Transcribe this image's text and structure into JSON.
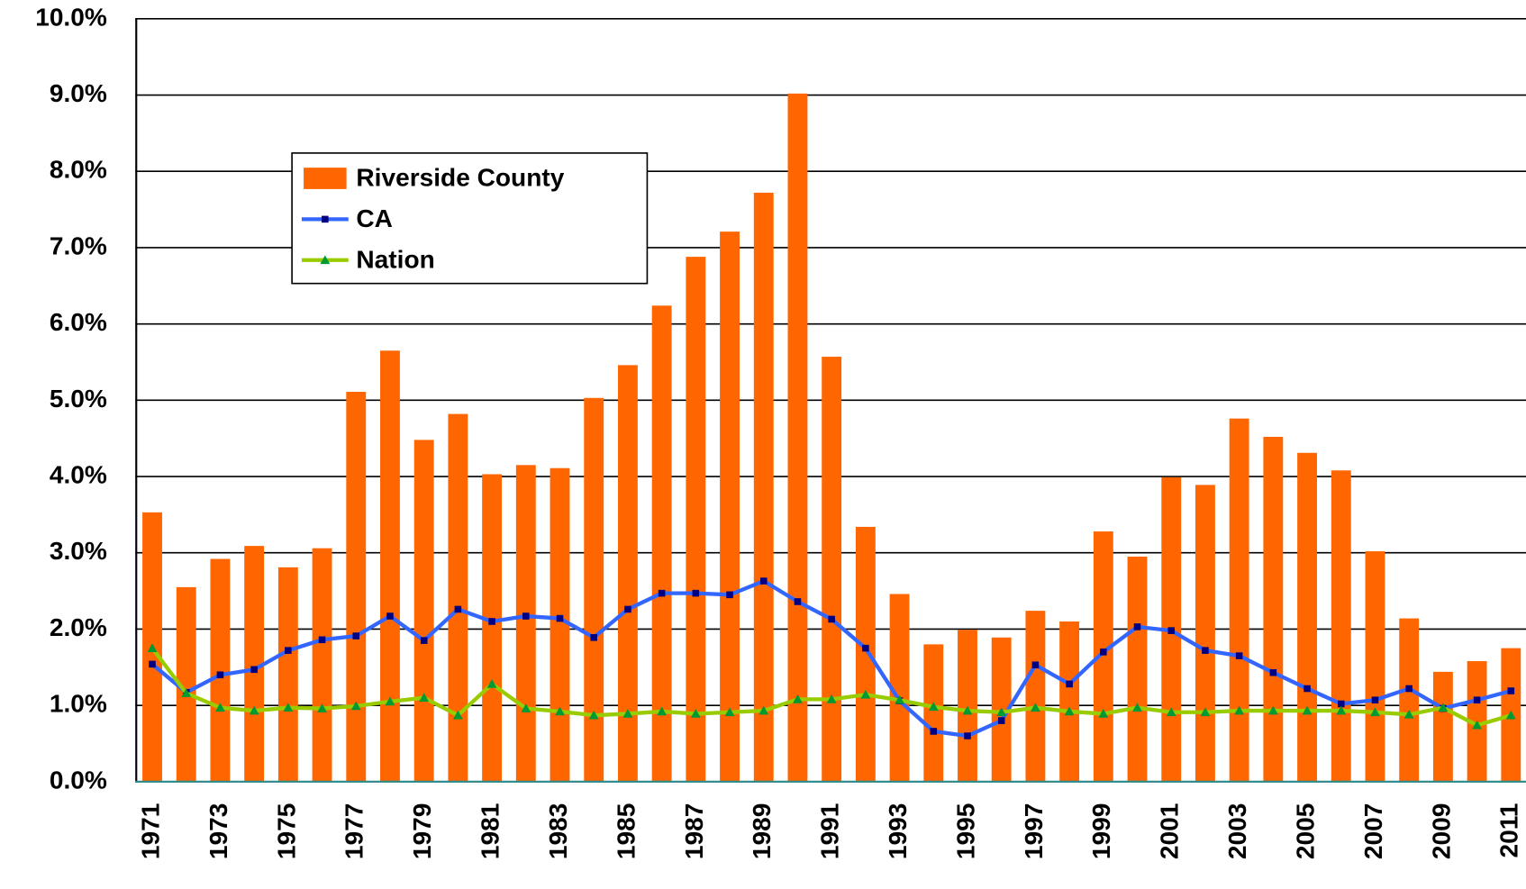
{
  "chart_data": {
    "type": "bar",
    "categories": [
      "1971",
      null,
      "1973",
      null,
      "1975",
      null,
      "1977",
      null,
      "1979",
      null,
      "1981",
      null,
      "1983",
      null,
      "1985",
      null,
      "1987",
      null,
      "1989",
      null,
      "1991",
      null,
      "1993",
      null,
      "1995",
      null,
      "1997",
      null,
      "1999",
      null,
      "2001",
      null,
      "2003",
      null,
      "2005",
      null,
      "2007",
      null,
      "2009",
      null,
      "2011"
    ],
    "series": [
      {
        "name": "Riverside County",
        "type": "bar",
        "color": "#ff6600",
        "values": [
          3.53,
          2.55,
          2.92,
          3.09,
          2.81,
          3.06,
          5.11,
          5.65,
          4.48,
          4.82,
          4.03,
          4.15,
          4.11,
          5.03,
          5.46,
          6.24,
          6.88,
          7.21,
          7.72,
          9.02,
          5.57,
          3.34,
          2.46,
          1.8,
          1.99,
          1.89,
          2.24,
          2.1,
          3.28,
          2.95,
          3.99,
          3.89,
          4.76,
          4.52,
          4.31,
          4.08,
          3.02,
          2.14,
          1.44,
          1.58,
          1.75
        ]
      },
      {
        "name": "CA",
        "type": "line",
        "color": "#3366ff",
        "marker": "square",
        "marker_color": "#000080",
        "values": [
          1.54,
          1.17,
          1.4,
          1.47,
          1.72,
          1.86,
          1.91,
          2.17,
          1.85,
          2.26,
          2.1,
          2.17,
          2.14,
          1.89,
          2.26,
          2.47,
          2.47,
          2.45,
          2.63,
          2.36,
          2.13,
          1.75,
          1.06,
          0.66,
          0.6,
          0.8,
          1.53,
          1.28,
          1.7,
          2.03,
          1.98,
          1.72,
          1.65,
          1.43,
          1.22,
          1.02,
          1.07,
          1.22,
          0.96,
          1.07,
          1.19
        ]
      },
      {
        "name": "Nation",
        "type": "line",
        "color": "#99cc00",
        "marker": "triangle",
        "marker_color": "#009933",
        "values": [
          1.75,
          1.16,
          0.97,
          0.93,
          0.97,
          0.96,
          0.99,
          1.05,
          1.1,
          0.87,
          1.28,
          0.96,
          0.92,
          0.87,
          0.89,
          0.92,
          0.89,
          0.91,
          0.93,
          1.08,
          1.08,
          1.14,
          1.07,
          0.98,
          0.93,
          0.91,
          0.97,
          0.92,
          0.89,
          0.97,
          0.91,
          0.91,
          0.93,
          0.93,
          0.93,
          0.93,
          0.91,
          0.88,
          0.97,
          0.74,
          0.87
        ]
      }
    ],
    "ylim": [
      0,
      10
    ],
    "yticks": [
      {
        "value": 0,
        "label": "0.0%"
      },
      {
        "value": 1,
        "label": "1.0%"
      },
      {
        "value": 2,
        "label": "2.0%"
      },
      {
        "value": 3,
        "label": "3.0%"
      },
      {
        "value": 4,
        "label": "4.0%"
      },
      {
        "value": 5,
        "label": "5.0%"
      },
      {
        "value": 6,
        "label": "6.0%"
      },
      {
        "value": 7,
        "label": "7.0%"
      },
      {
        "value": 8,
        "label": "8.0%"
      },
      {
        "value": 9,
        "label": "9.0%"
      },
      {
        "value": 10,
        "label": "10.0%"
      }
    ],
    "grid": true,
    "legend": "upper-left"
  }
}
